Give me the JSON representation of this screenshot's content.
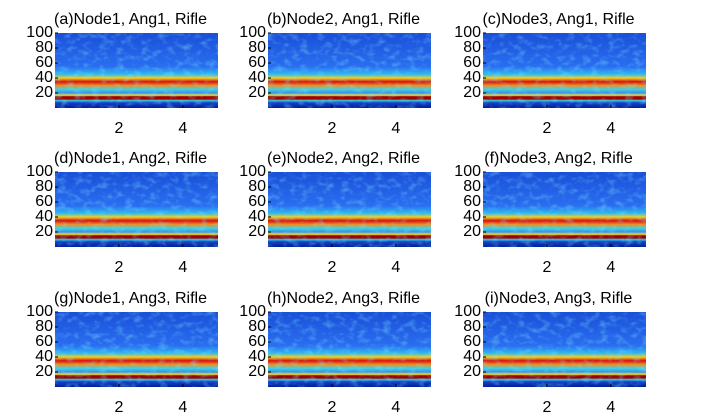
{
  "chart_data": [
    {
      "type": "spectrogram",
      "title": "(a)Node1, Ang1, Rifle",
      "xlim": [
        0,
        5.1
      ],
      "ylim": [
        0,
        100
      ],
      "xticks": [
        2,
        4
      ],
      "yticks": [
        20,
        40,
        60,
        80,
        100
      ]
    },
    {
      "type": "spectrogram",
      "title": "(b)Node2, Ang1, Rifle",
      "xlim": [
        0,
        5.1
      ],
      "ylim": [
        0,
        100
      ],
      "xticks": [
        2,
        4
      ],
      "yticks": [
        20,
        40,
        60,
        80,
        100
      ]
    },
    {
      "type": "spectrogram",
      "title": "(c)Node3, Ang1, Rifle",
      "xlim": [
        0,
        5.1
      ],
      "ylim": [
        0,
        100
      ],
      "xticks": [
        2,
        4
      ],
      "yticks": [
        20,
        40,
        60,
        80,
        100
      ]
    },
    {
      "type": "spectrogram",
      "title": "(d)Node1, Ang2, Rifle",
      "xlim": [
        0,
        5.1
      ],
      "ylim": [
        0,
        100
      ],
      "xticks": [
        2,
        4
      ],
      "yticks": [
        20,
        40,
        60,
        80,
        100
      ]
    },
    {
      "type": "spectrogram",
      "title": "(e)Node2, Ang2, Rifle",
      "xlim": [
        0,
        5.1
      ],
      "ylim": [
        0,
        100
      ],
      "xticks": [
        2,
        4
      ],
      "yticks": [
        20,
        40,
        60,
        80,
        100
      ]
    },
    {
      "type": "spectrogram",
      "title": "(f)Node3, Ang2, Rifle",
      "xlim": [
        0,
        5.1
      ],
      "ylim": [
        0,
        100
      ],
      "xticks": [
        2,
        4
      ],
      "yticks": [
        20,
        40,
        60,
        80,
        100
      ]
    },
    {
      "type": "spectrogram",
      "title": "(g)Node1, Ang3, Rifle",
      "xlim": [
        0,
        5.1
      ],
      "ylim": [
        0,
        100
      ],
      "xticks": [
        2,
        4
      ],
      "yticks": [
        20,
        40,
        60,
        80,
        100
      ]
    },
    {
      "type": "spectrogram",
      "title": "(h)Node2, Ang3, Rifle",
      "xlim": [
        0,
        5.1
      ],
      "ylim": [
        0,
        100
      ],
      "xticks": [
        2,
        4
      ],
      "yticks": [
        20,
        40,
        60,
        80,
        100
      ]
    },
    {
      "type": "spectrogram",
      "title": "(i)Node3, Ang3, Rifle",
      "xlim": [
        0,
        5.1
      ],
      "ylim": [
        0,
        100
      ],
      "xticks": [
        2,
        4
      ],
      "yticks": [
        20,
        40,
        60,
        80,
        100
      ]
    }
  ]
}
